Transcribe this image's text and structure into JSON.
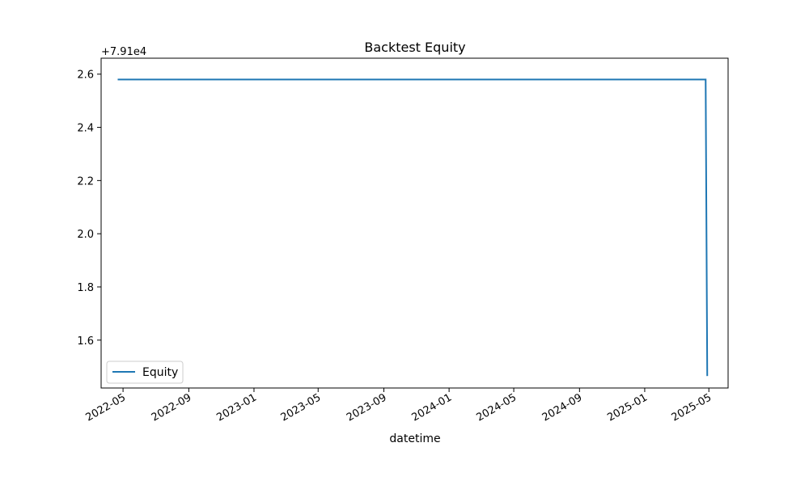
{
  "chart_data": {
    "type": "line",
    "title": "Backtest Equity",
    "xlabel": "datetime",
    "ylabel": "",
    "y_offset_text": "+7.91e4",
    "x_ticks": [
      "2022-05",
      "2022-09",
      "2023-01",
      "2023-05",
      "2023-09",
      "2024-01",
      "2024-05",
      "2024-09",
      "2025-01",
      "2025-05"
    ],
    "y_ticks": [
      "1.6",
      "1.8",
      "2.0",
      "2.2",
      "2.4",
      "2.6"
    ],
    "xlim": [
      "2022-03-21",
      "2025-06-06"
    ],
    "ylim": [
      79101.42,
      79102.66
    ],
    "grid": false,
    "legend_position": "lower-left",
    "series": [
      {
        "name": "Equity",
        "color": "#1f77b4",
        "x": [
          "2022-04-21",
          "2022-07-01",
          "2022-10-01",
          "2023-01-01",
          "2023-04-01",
          "2023-07-01",
          "2023-10-01",
          "2024-01-01",
          "2024-04-01",
          "2024-07-01",
          "2024-10-01",
          "2025-01-01",
          "2025-04-01",
          "2025-04-25",
          "2025-04-28"
        ],
        "y": [
          79102.58,
          79102.58,
          79102.58,
          79102.58,
          79102.58,
          79102.58,
          79102.58,
          79102.58,
          79102.58,
          79102.58,
          79102.58,
          79102.58,
          79102.58,
          79102.58,
          79101.465
        ]
      }
    ]
  }
}
